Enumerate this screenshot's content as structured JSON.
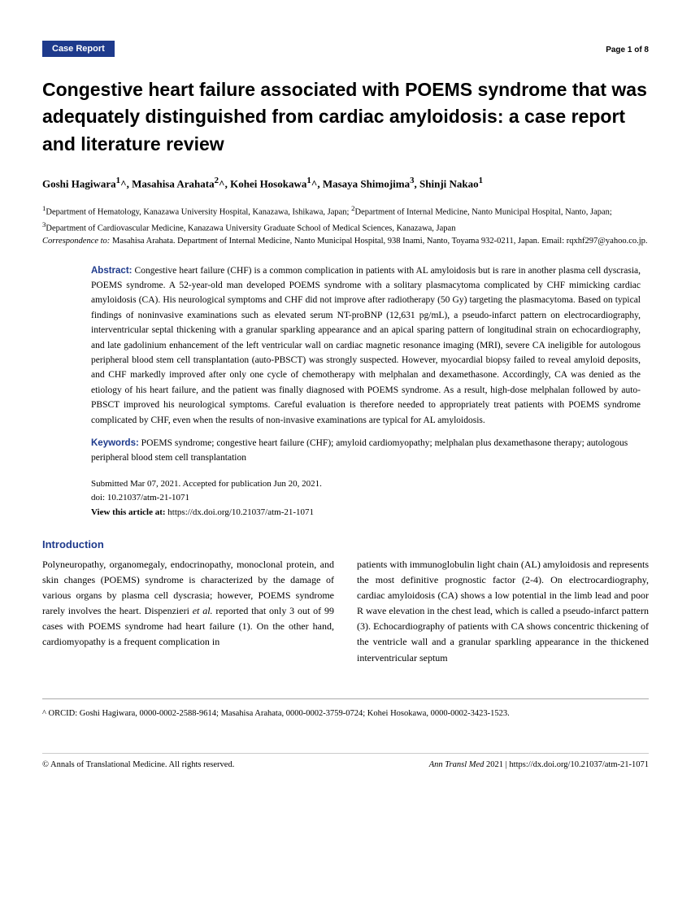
{
  "header": {
    "badge": "Case Report",
    "page_label": "Page 1 of 8"
  },
  "title": "Congestive heart failure associated with POEMS syndrome that was adequately distinguished from cardiac amyloidosis: a case report and literature review",
  "authors_html": "Goshi Hagiwara<sup>1</sup>^, Masahisa Arahata<sup>2</sup>^, Kohei Hosokawa<sup>1</sup>^, Masaya Shimojima<sup>3</sup>, Shinji Nakao<sup>1</sup>",
  "affiliations_html": "<sup>1</sup>Department of Hematology, Kanazawa University Hospital, Kanazawa, Ishikawa, Japan; <sup>2</sup>Department of Internal Medicine, Nanto Municipal Hospital, Nanto, Japan; <sup>3</sup>Department of Cardiovascular Medicine, Kanazawa University Graduate School of Medical Sciences, Kanazawa, Japan<br><em>Correspondence to:</em> Masahisa Arahata. Department of Internal Medicine, Nanto Municipal Hospital, 938 Inami, Nanto, Toyama 932-0211, Japan. Email: rqxhf297@yahoo.co.jp.",
  "abstract": {
    "label": "Abstract:",
    "text": "Congestive heart failure (CHF) is a common complication in patients with AL amyloidosis but is rare in another plasma cell dyscrasia, POEMS syndrome. A 52-year-old man developed POEMS syndrome with a solitary plasmacytoma complicated by CHF mimicking cardiac amyloidosis (CA). His neurological symptoms and CHF did not improve after radiotherapy (50 Gy) targeting the plasmacytoma. Based on typical findings of noninvasive examinations such as elevated serum NT-proBNP (12,631 pg/mL), a pseudo-infarct pattern on electrocardiography, interventricular septal thickening with a granular sparkling appearance and an apical sparing pattern of longitudinal strain on echocardiography, and late gadolinium enhancement of the left ventricular wall on cardiac magnetic resonance imaging (MRI), severe CA ineligible for autologous peripheral blood stem cell transplantation (auto-PBSCT) was strongly suspected. However, myocardial biopsy failed to reveal amyloid deposits, and CHF markedly improved after only one cycle of chemotherapy with melphalan and dexamethasone. Accordingly, CA was denied as the etiology of his heart failure, and the patient was finally diagnosed with POEMS syndrome. As a result, high-dose melphalan followed by auto-PBSCT improved his neurological symptoms. Careful evaluation is therefore needed to appropriately treat patients with POEMS syndrome complicated by CHF, even when the results of non-invasive examinations are typical for AL amyloidosis."
  },
  "keywords": {
    "label": "Keywords:",
    "text": "POEMS syndrome; congestive heart failure (CHF); amyloid cardiomyopathy; melphalan plus dexamethasone therapy; autologous peripheral blood stem cell transplantation"
  },
  "submission": {
    "dates": "Submitted Mar 07, 2021. Accepted for publication Jun 20, 2021.",
    "doi": "doi: 10.21037/atm-21-1071",
    "view_label": "View this article at:",
    "view_url": "https://dx.doi.org/10.21037/atm-21-1071"
  },
  "intro": {
    "heading": "Introduction",
    "col1": "Polyneuropathy, organomegaly, endocrinopathy, monoclonal protein, and skin changes (POEMS) syndrome is characterized by the damage of various organs by plasma cell dyscrasia; however, POEMS syndrome rarely involves the heart. Dispenzieri <em>et al.</em> reported that only 3 out of 99 cases with POEMS syndrome had heart failure (1). On the other hand, cardiomyopathy is a frequent complication in",
    "col2": "patients with immunoglobulin light chain (AL) amyloidosis and represents the most definitive prognostic factor (2-4). On electrocardiography, cardiac amyloidosis (CA) shows a low potential in the limb lead and poor R wave elevation in the chest lead, which is called a pseudo-infarct pattern (3). Echocardiography of patients with CA shows concentric thickening of the ventricle wall and a granular sparkling appearance in the thickened interventricular septum"
  },
  "orcid": "^ ORCID: Goshi Hagiwara, 0000-0002-2588-9614; Masahisa Arahata, 0000-0002-3759-0724; Kohei Hosokawa, 0000-0002-3423-1523.",
  "footer": {
    "left": "© Annals of Translational Medicine. All rights reserved.",
    "right_html": "<em>Ann Transl Med</em> 2021 | https://dx.doi.org/10.21037/atm-21-1071"
  },
  "colors": {
    "primary": "#1e3a8c",
    "text": "#000000",
    "background": "#ffffff"
  }
}
